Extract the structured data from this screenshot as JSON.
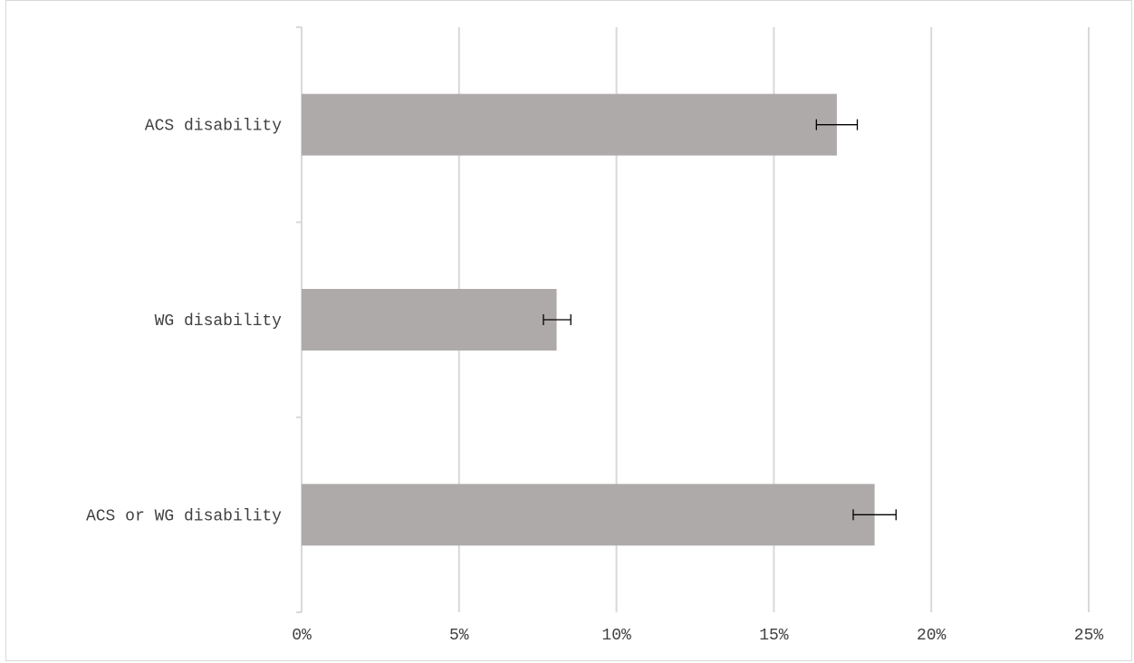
{
  "chart_data": {
    "type": "bar",
    "orientation": "horizontal",
    "title": "",
    "xlabel": "",
    "ylabel": "",
    "categories": [
      "ACS disability",
      "WG disability",
      "ACS or WG disability"
    ],
    "values": [
      17.0,
      8.1,
      18.2
    ],
    "error_low": [
      16.35,
      7.68,
      17.52
    ],
    "error_high": [
      17.65,
      8.55,
      18.88
    ],
    "xlim": [
      0,
      25
    ],
    "xticks": [
      0,
      5,
      10,
      15,
      20,
      25
    ],
    "xtick_labels": [
      "0%",
      "5%",
      "10%",
      "15%",
      "20%",
      "25%"
    ],
    "grid": "vertical",
    "legend": "none",
    "bar_color": "#aeaaaa",
    "grid_color": "#d9d9d9",
    "error_bar_color": "#000000"
  }
}
